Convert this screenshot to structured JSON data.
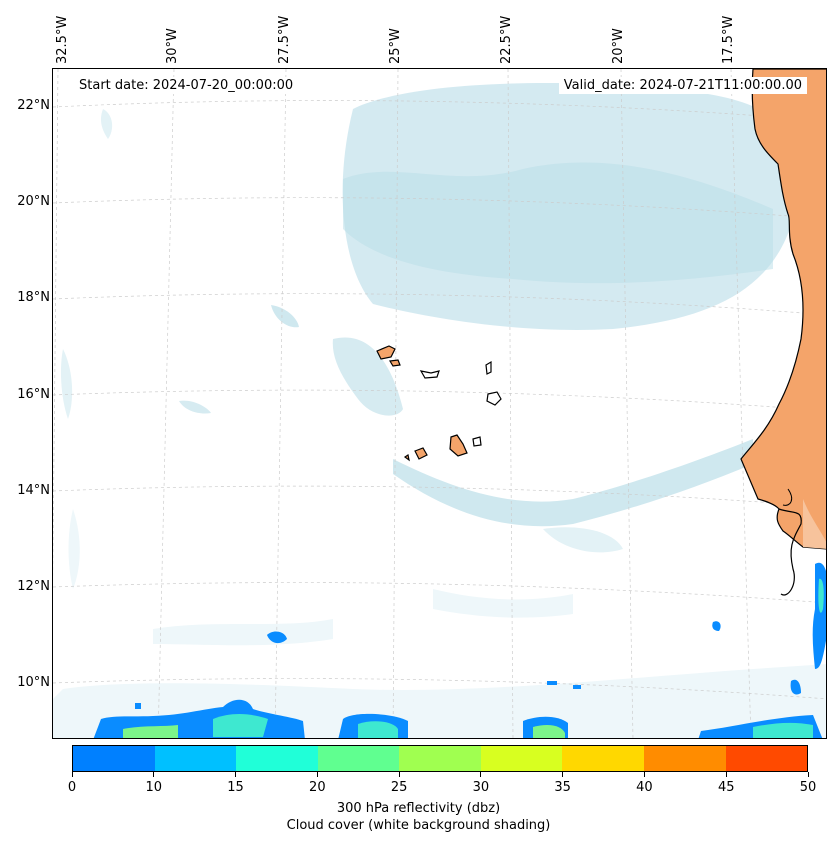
{
  "map": {
    "start_date": "Start date: 2024-07-20_00:00:00",
    "valid_date": "Valid_date: 2024-07-21T11:00:00.00",
    "lon_labels": [
      "32.5°W",
      "30°W",
      "27.5°W",
      "25°W",
      "22.5°W",
      "20°W",
      "17.5°W"
    ],
    "lat_labels": [
      "22°N",
      "20°N",
      "18°N",
      "16°N",
      "14°N",
      "12°N",
      "10°N"
    ]
  },
  "colorbar": {
    "ticks": [
      "0",
      "10",
      "15",
      "20",
      "25",
      "30",
      "35",
      "40",
      "45",
      "50"
    ],
    "colors": [
      "#0080ff",
      "#00c0ff",
      "#20ffd8",
      "#60ff90",
      "#a0ff50",
      "#d8ff20",
      "#ffd800",
      "#ff8c00",
      "#ff4a00"
    ],
    "label": "300 hPa reflectivity (dbz)",
    "sublabel": "Cloud cover (white background shading)"
  },
  "colors": {
    "land": "#f4a46a",
    "cloud": "#cfe8ef",
    "cloud_light": "#e3f2f6",
    "reflectivity_low": "#0a8cff",
    "reflectivity_mid": "#3ee8d0",
    "reflectivity_high": "#7cf58a",
    "grid": "#cccccc"
  }
}
